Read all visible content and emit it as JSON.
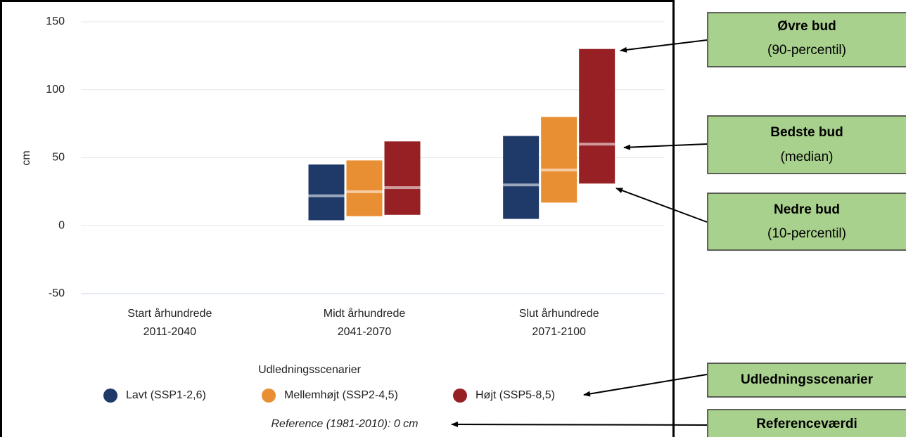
{
  "chart_data": {
    "type": "range",
    "y_label": "cm",
    "categories": [
      [
        "Start århundrede",
        "2011-2040"
      ],
      [
        "Midt århundrede",
        "2041-2070"
      ],
      [
        "Slut århundrede",
        "2071-2100"
      ]
    ],
    "series": [
      {
        "name": "Lavt (SSP1-2,6)",
        "color": "#1f3a68",
        "low": [
          null,
          4,
          5
        ],
        "median": [
          null,
          22,
          30
        ],
        "high": [
          null,
          45,
          66
        ]
      },
      {
        "name": "Mellemhøjt (SSP2-4,5)",
        "color": "#e98f33",
        "low": [
          null,
          7,
          17
        ],
        "median": [
          null,
          25,
          41
        ],
        "high": [
          null,
          48,
          80
        ]
      },
      {
        "name": "Højt (SSP5-8,5)",
        "color": "#962024",
        "low": [
          null,
          8,
          31
        ],
        "median": [
          null,
          28,
          60
        ],
        "high": [
          null,
          62,
          130
        ]
      }
    ],
    "ylim": [
      -50,
      150
    ],
    "yticks": [
      -50,
      0,
      50,
      100,
      150
    ],
    "grid": true,
    "legend_title": "Udledningsscenarier",
    "reference_note": "Reference (1981-2010): 0 cm",
    "annotations": [
      {
        "title": "Øvre bud",
        "subtitle": "(90-percentil)"
      },
      {
        "title": "Bedste bud",
        "subtitle": "(median)"
      },
      {
        "title": "Nedre bud",
        "subtitle": "(10-percentil)"
      },
      {
        "title": "Udledningsscenarier"
      },
      {
        "title": "Referenceværdi"
      }
    ]
  }
}
